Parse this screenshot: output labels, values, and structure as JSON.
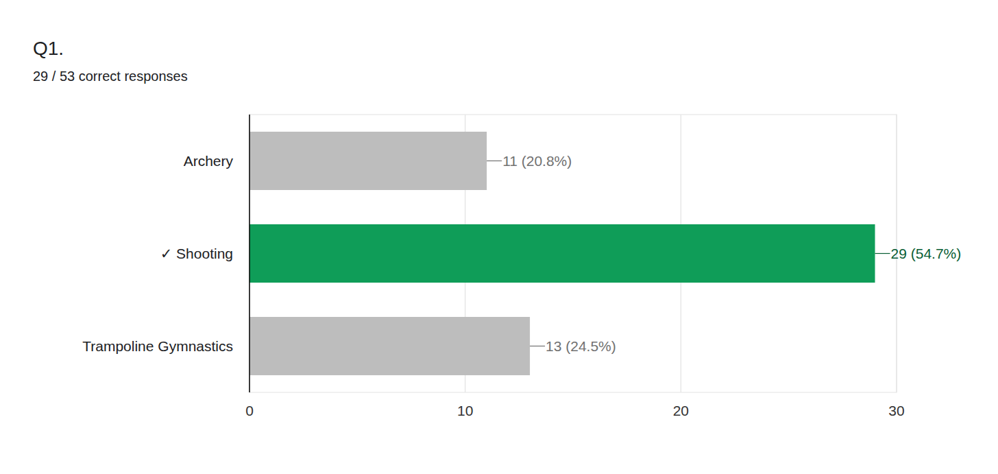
{
  "chart_data": {
    "type": "bar",
    "orientation": "horizontal",
    "title": "Q1.",
    "subtitle": "29 / 53 correct responses",
    "categories": [
      "Archery",
      "✓ Shooting",
      "Trampoline Gymnastics"
    ],
    "values": [
      11,
      29,
      13
    ],
    "value_labels": [
      "11 (20.8%)",
      "29 (54.7%)",
      "13 (24.5%)"
    ],
    "colors": [
      "#bdbdbd",
      "#0f9d58",
      "#bdbdbd"
    ],
    "xlim": [
      0,
      30
    ],
    "xticks": [
      0,
      10,
      20,
      30
    ],
    "grid": true,
    "data_labels": true
  }
}
